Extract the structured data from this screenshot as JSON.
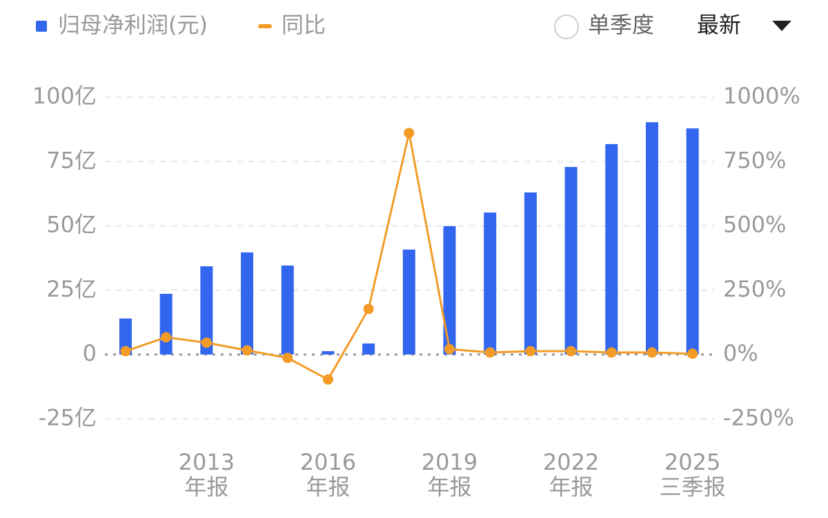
{
  "chart_data": {
    "type": "bar-line",
    "categories": [
      null,
      null,
      [
        "2013",
        "年报"
      ],
      null,
      null,
      [
        "2016",
        "年报"
      ],
      null,
      null,
      [
        "2019",
        "年报"
      ],
      null,
      null,
      [
        "2022",
        "年报"
      ],
      null,
      null,
      [
        "2025",
        "三季报"
      ]
    ],
    "series": [
      {
        "name": "归母净利润(元)",
        "color": "#3366ee",
        "type": "bar",
        "values": [
          14,
          23.6,
          34.3,
          39.7,
          34.6,
          1.3,
          4.3,
          40.8,
          49.9,
          55.2,
          63,
          72.9,
          81.8,
          90.3,
          87.9
        ]
      },
      {
        "name": "同比",
        "color": "#f29b26",
        "type": "line",
        "axis": "y2",
        "values": [
          13,
          67,
          46,
          16,
          -13,
          -97,
          177,
          861,
          21,
          8,
          13,
          13,
          8,
          8,
          3
        ]
      }
    ],
    "ylim": [
      -25,
      100
    ],
    "yticks": [
      {
        "value": -25,
        "label": "-25亿"
      },
      0,
      {
        "value": 25,
        "label": "25亿"
      },
      {
        "value": 50,
        "label": "50亿"
      },
      {
        "value": 75,
        "label": "75亿"
      },
      {
        "value": 100,
        "label": "100亿"
      }
    ],
    "y2lim": [
      -250,
      1000
    ],
    "y2ticks": [
      {
        "value": -250,
        "label": "-250%"
      },
      {
        "value": 0,
        "label": "0%"
      },
      {
        "value": 250,
        "label": "250%"
      },
      {
        "value": 500,
        "label": "500%"
      },
      {
        "value": 750,
        "label": "750%"
      },
      {
        "value": 1000,
        "label": "1000%"
      }
    ],
    "grid": true,
    "controls": {
      "single_quarter": "单季度",
      "period": "最新"
    }
  }
}
